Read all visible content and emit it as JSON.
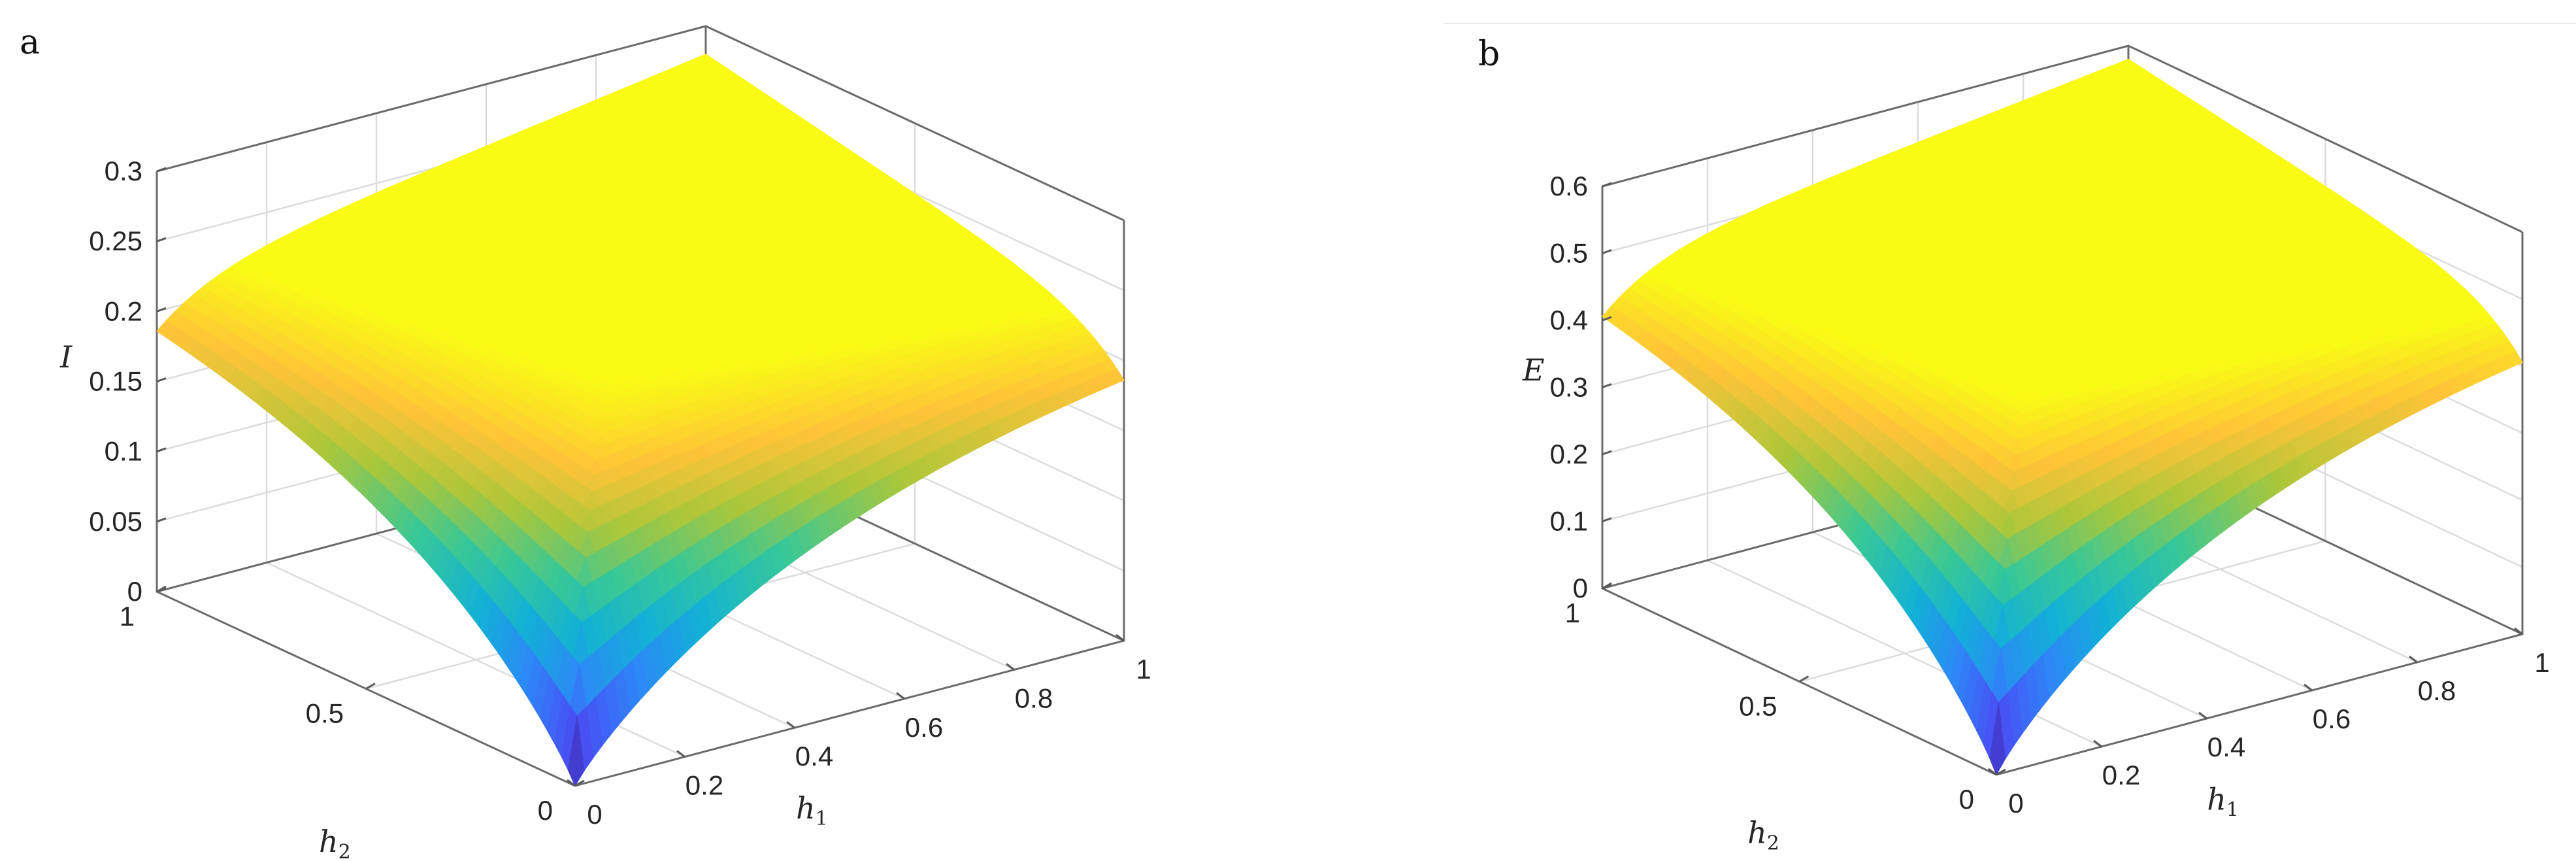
{
  "chart_data": [
    {
      "panel": "a",
      "type": "surface",
      "xlabel": "h",
      "xlabel_sub": "1",
      "ylabel": "h",
      "ylabel_sub": "2",
      "zlabel": "I",
      "xlim": [
        0,
        1
      ],
      "ylim": [
        0,
        1
      ],
      "zlim": [
        0,
        0.3
      ],
      "xticks": [
        "0",
        "0.2",
        "0.4",
        "0.6",
        "0.8",
        "1"
      ],
      "yticks": [
        "0",
        "0.5",
        "1"
      ],
      "zticks": [
        "0",
        "0.05",
        "0.1",
        "0.15",
        "0.2",
        "0.25",
        "0.3"
      ],
      "z_at_h1_1_h2_1": 0.28,
      "z_at_h1_1_h2_0": 0.22,
      "z_at_h1_0_h2_1": 0.22,
      "z_at_origin": 0,
      "colormap": "parula",
      "grid": true
    },
    {
      "panel": "b",
      "type": "surface",
      "xlabel": "h",
      "xlabel_sub": "1",
      "ylabel": "h",
      "ylabel_sub": "2",
      "zlabel": "E",
      "xlim": [
        0,
        1
      ],
      "ylim": [
        0,
        1
      ],
      "zlim": [
        0,
        0.6
      ],
      "xticks": [
        "0",
        "0.2",
        "0.4",
        "0.6",
        "0.8",
        "1"
      ],
      "yticks": [
        "0",
        "0.5",
        "1"
      ],
      "zticks": [
        "0",
        "0.1",
        "0.2",
        "0.3",
        "0.4",
        "0.5",
        "0.6"
      ],
      "z_at_h1_1_h2_1": 0.58,
      "z_at_h1_1_h2_0": 0.48,
      "z_at_h1_0_h2_1": 0.48,
      "z_at_origin": 0,
      "colormap": "parula",
      "grid": true
    }
  ]
}
